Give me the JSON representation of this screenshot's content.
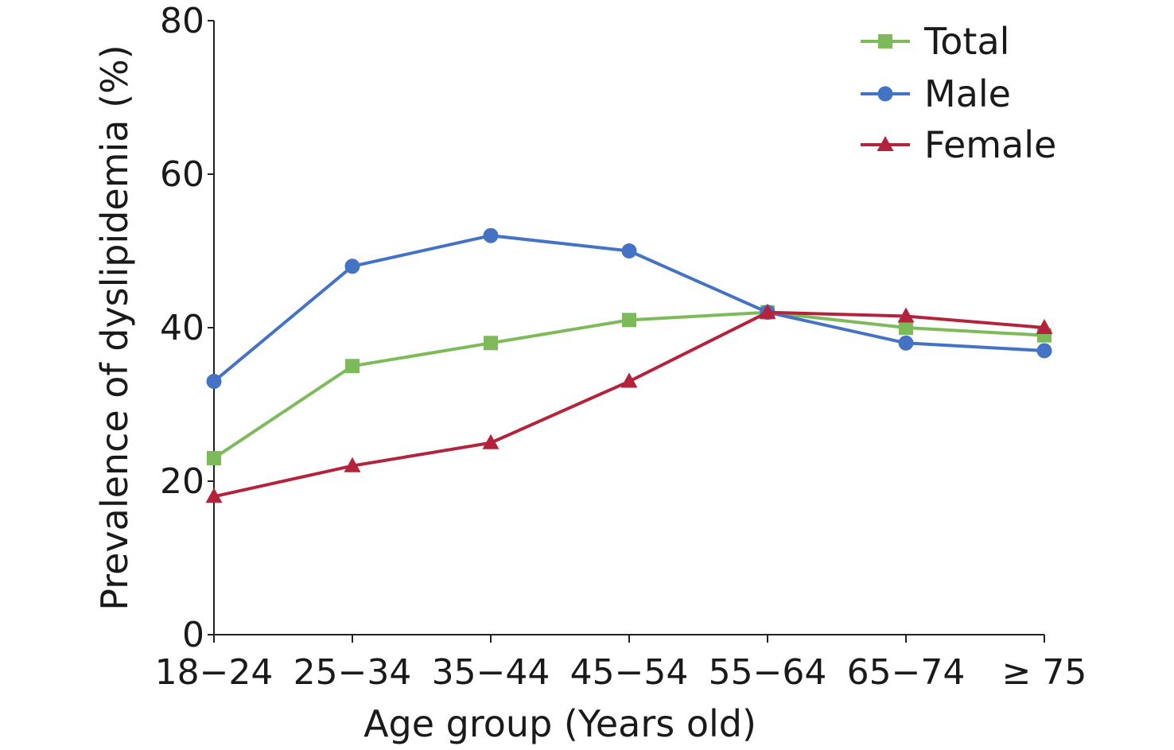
{
  "chart_data": {
    "type": "line",
    "title": "",
    "xlabel": "Age group (Years old)",
    "ylabel": "Prevalence of dyslipidemia (%)",
    "categories": [
      "18−24",
      "25−34",
      "35−44",
      "45−54",
      "55−64",
      "65−74",
      "≥ 75"
    ],
    "ylim": [
      0,
      80
    ],
    "yticks": [
      "0",
      "20",
      "40",
      "60",
      "80"
    ],
    "grid": false,
    "legend_position": "top-right",
    "series": [
      {
        "name": "Total",
        "color": "#7dbb5a",
        "marker": "square",
        "values": [
          23,
          35,
          38,
          41,
          42,
          40,
          39
        ]
      },
      {
        "name": "Male",
        "color": "#4472c4",
        "marker": "circle",
        "values": [
          33,
          48,
          52,
          50,
          42,
          38,
          37
        ]
      },
      {
        "name": "Female",
        "color": "#b3233c",
        "marker": "triangle",
        "values": [
          18,
          22,
          25,
          33,
          42,
          41.5,
          40
        ]
      }
    ]
  }
}
